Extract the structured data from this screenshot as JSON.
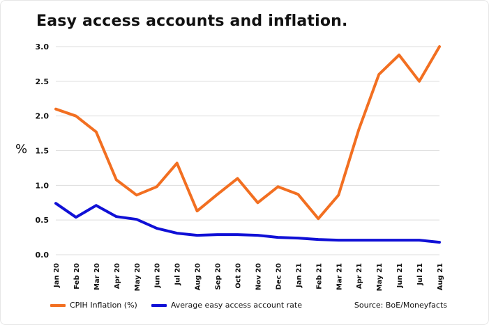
{
  "chart_data": {
    "type": "line",
    "title": "Easy access accounts and inflation.",
    "ylabel": "%",
    "xlabel": "",
    "categories": [
      "Jan 20",
      "Feb 20",
      "Mar 20",
      "Apr 20",
      "May 20",
      "Jun 20",
      "Jul 20",
      "Aug 20",
      "Sep 20",
      "Oct 20",
      "Nov 20",
      "Dec 20",
      "Jan 21",
      "Feb 21",
      "Mar 21",
      "Apr 21",
      "May 21",
      "Jun 21",
      "Jul 21",
      "Aug 21"
    ],
    "y_ticks": [
      "0.0",
      "0.5",
      "1.0",
      "1.5",
      "2.0",
      "2.5",
      "3.0"
    ],
    "ylim": [
      0,
      3.0
    ],
    "grid": true,
    "legend_position": "bottom-left",
    "series": [
      {
        "name": "CPIH Inflation (%)",
        "color": "#f26f21",
        "values": [
          2.1,
          2.0,
          1.77,
          1.08,
          0.86,
          0.98,
          1.32,
          0.63,
          0.87,
          1.1,
          0.75,
          0.98,
          0.87,
          0.52,
          0.86,
          1.8,
          2.6,
          2.88,
          2.5,
          3.0
        ]
      },
      {
        "name": "Average easy access account rate",
        "color": "#1010d6",
        "values": [
          0.74,
          0.54,
          0.71,
          0.55,
          0.51,
          0.38,
          0.31,
          0.28,
          0.29,
          0.29,
          0.28,
          0.25,
          0.24,
          0.22,
          0.21,
          0.21,
          0.21,
          0.21,
          0.21,
          0.18
        ]
      }
    ],
    "source": "Source: BoE/Moneyfacts"
  }
}
